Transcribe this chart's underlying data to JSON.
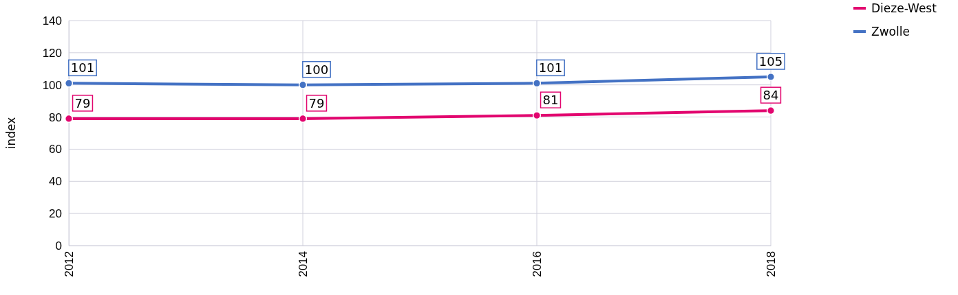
{
  "chart_data": {
    "type": "line",
    "ylabel": "index",
    "x": [
      2012,
      2014,
      2016,
      2018
    ],
    "xlim": [
      2012,
      2018
    ],
    "xticks": [
      2012,
      2014,
      2016,
      2018
    ],
    "ylim": [
      0,
      140
    ],
    "yticks": [
      0,
      20,
      40,
      60,
      80,
      100,
      120,
      140
    ],
    "series": [
      {
        "name": "Dieze-West",
        "color": "#e2066f",
        "values": [
          79,
          79,
          81,
          84
        ]
      },
      {
        "name": "Zwolle",
        "color": "#4472c4",
        "values": [
          101,
          100,
          101,
          105
        ]
      }
    ],
    "grid": true,
    "legend": "top right",
    "marker": "circle",
    "data_labels": true
  }
}
